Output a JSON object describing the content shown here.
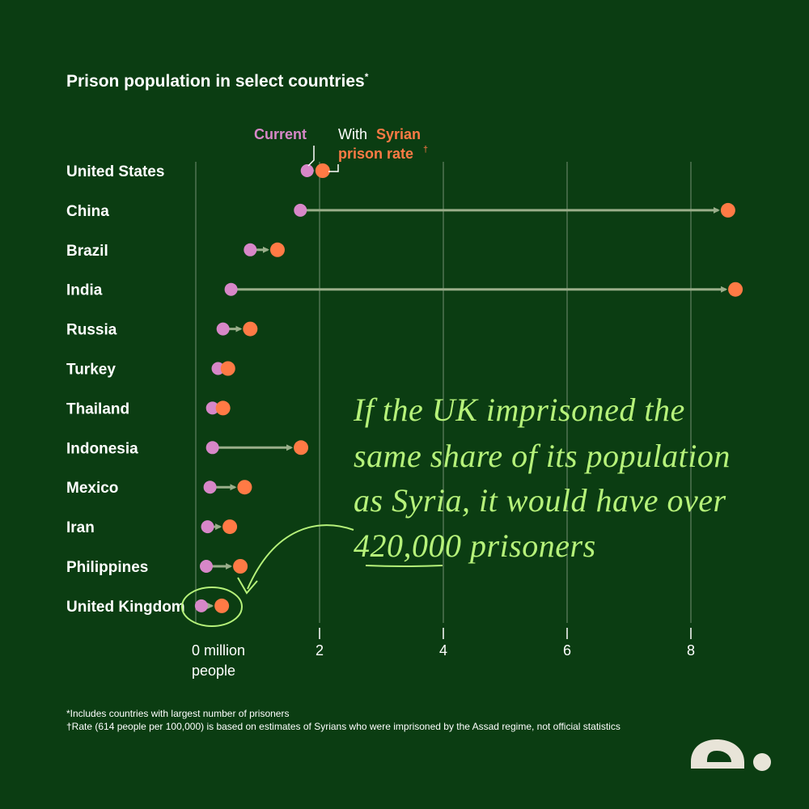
{
  "title": "Prison population in select countries",
  "title_mark": "*",
  "legend": {
    "current": "Current",
    "with_prefix": "With ",
    "syrian_line1": "Syrian",
    "syrian_line2": "prison rate",
    "dagger": "†"
  },
  "annotation": {
    "line1": "If the UK imprisoned the",
    "line2": "same share of its population",
    "line3": "as Syria, it would have over",
    "line4": "420,000 prisoners"
  },
  "footnotes": {
    "note1": "*Includes countries with largest number of prisoners",
    "note2": "†Rate (614 people per 100,000) is based on estimates of Syrians who were imprisoned by the Assad regime, not official statistics"
  },
  "colors": {
    "background": "#0b3d12",
    "current": "#d787c8",
    "syrian": "#ff7a45",
    "arrow": "#9aae8a",
    "annotation": "#b6f27a"
  },
  "chart_data": {
    "type": "dumbbell",
    "title": "Prison population in select countries",
    "xlabel": "million people",
    "xlim": [
      0,
      9
    ],
    "ticks": [
      {
        "value": 0,
        "label": "0 million",
        "sublabel": "people"
      },
      {
        "value": 2,
        "label": "2"
      },
      {
        "value": 4,
        "label": "4"
      },
      {
        "value": 6,
        "label": "6"
      },
      {
        "value": 8,
        "label": "8"
      }
    ],
    "series": [
      {
        "name": "Current",
        "color": "#d787c8"
      },
      {
        "name": "With Syrian prison rate",
        "color": "#ff7a45"
      }
    ],
    "rows": [
      {
        "country": "United States",
        "current": 1.8,
        "syrian": 2.05
      },
      {
        "country": "China",
        "current": 1.69,
        "syrian": 8.6
      },
      {
        "country": "Brazil",
        "current": 0.88,
        "syrian": 1.32
      },
      {
        "country": "India",
        "current": 0.57,
        "syrian": 8.72
      },
      {
        "country": "Russia",
        "current": 0.44,
        "syrian": 0.88
      },
      {
        "country": "Turkey",
        "current": 0.36,
        "syrian": 0.52
      },
      {
        "country": "Thailand",
        "current": 0.27,
        "syrian": 0.44
      },
      {
        "country": "Indonesia",
        "current": 0.27,
        "syrian": 1.7
      },
      {
        "country": "Mexico",
        "current": 0.23,
        "syrian": 0.79
      },
      {
        "country": "Iran",
        "current": 0.19,
        "syrian": 0.55
      },
      {
        "country": "Philippines",
        "current": 0.17,
        "syrian": 0.72
      },
      {
        "country": "United Kingdom",
        "current": 0.09,
        "syrian": 0.42
      }
    ]
  }
}
